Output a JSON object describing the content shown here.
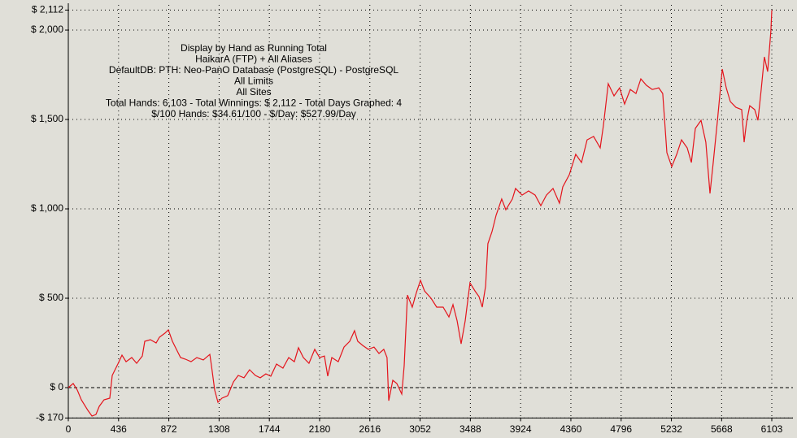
{
  "chart_data": {
    "type": "line",
    "annotations": [
      "Display by Hand as Running Total",
      "HaikarA (FTP) + All Aliases",
      "DefaultDB: PTH: Neo-PanO Database (PostgreSQL) - PostgreSQL",
      "All Limits",
      "All Sites",
      "Total Hands: 6,103 - Total Winnings: $ 2,112 - Total Days Graphed: 4",
      "$/100 Hands: $34.61/100 - $/Day: $527.99/Day"
    ],
    "xlim": [
      0,
      6103
    ],
    "xticks": [
      0,
      436,
      872,
      1308,
      1744,
      2180,
      2616,
      3052,
      3488,
      3924,
      4360,
      4796,
      5232,
      5668,
      6103
    ],
    "ylim": [
      -170,
      2112
    ],
    "yticks": [
      {
        "value": -170,
        "label": "-$ 170"
      },
      {
        "value": 0,
        "label": "$ 0"
      },
      {
        "value": 500,
        "label": "$ 500"
      },
      {
        "value": 1000,
        "label": "$ 1,000"
      },
      {
        "value": 1500,
        "label": "$ 1,500"
      },
      {
        "value": 2000,
        "label": "$ 2,000"
      },
      {
        "value": 2112,
        "label": "$ 2,112"
      }
    ],
    "grid": true,
    "color": "#e4141c",
    "x": [
      0,
      42,
      78,
      113,
      169,
      205,
      240,
      268,
      310,
      360,
      381,
      430,
      466,
      501,
      550,
      593,
      642,
      663,
      712,
      762,
      790,
      839,
      868,
      903,
      938,
      974,
      1016,
      1065,
      1115,
      1171,
      1228,
      1242,
      1270,
      1298,
      1333,
      1383,
      1432,
      1474,
      1524,
      1573,
      1623,
      1665,
      1714,
      1757,
      1806,
      1862,
      1912,
      1961,
      1997,
      2039,
      2088,
      2138,
      2180,
      2222,
      2251,
      2286,
      2342,
      2392,
      2441,
      2483,
      2511,
      2554,
      2603,
      2652,
      2695,
      2737,
      2765,
      2780,
      2815,
      2850,
      2893,
      2914,
      2942,
      2984,
      3020,
      3055,
      3090,
      3147,
      3196,
      3252,
      3302,
      3337,
      3373,
      3408,
      3443,
      3485,
      3528,
      3563,
      3591,
      3620,
      3640,
      3676,
      3711,
      3760,
      3796,
      3852,
      3880,
      3937,
      3993,
      4050,
      4099,
      4148,
      4205,
      4261,
      4290,
      4346,
      4402,
      4452,
      4501,
      4557,
      4614,
      4642,
      4684,
      4734,
      4783,
      4826,
      4875,
      4925,
      4967,
      5016,
      5066,
      5122,
      5157,
      5193,
      5235,
      5278,
      5320,
      5369,
      5405,
      5440,
      5489,
      5531,
      5567,
      5595,
      5630,
      5673,
      5708,
      5743,
      5792,
      5842,
      5863,
      5884,
      5912,
      5955,
      5983,
      6011,
      6039,
      6067,
      6095,
      6103
    ],
    "values": [
      0,
      23,
      -14,
      -68,
      -127,
      -159,
      -150,
      -105,
      -68,
      -59,
      68,
      132,
      182,
      145,
      168,
      136,
      177,
      259,
      268,
      250,
      282,
      305,
      323,
      259,
      214,
      168,
      159,
      145,
      168,
      155,
      186,
      123,
      -14,
      -82,
      -59,
      -45,
      32,
      68,
      55,
      100,
      68,
      55,
      77,
      64,
      132,
      109,
      168,
      145,
      223,
      168,
      136,
      214,
      168,
      177,
      64,
      168,
      145,
      227,
      259,
      318,
      259,
      236,
      214,
      227,
      191,
      214,
      168,
      -73,
      41,
      23,
      -36,
      123,
      518,
      450,
      532,
      600,
      541,
      500,
      450,
      450,
      395,
      464,
      373,
      245,
      373,
      586,
      541,
      509,
      450,
      568,
      805,
      873,
      964,
      1055,
      995,
      1055,
      1114,
      1077,
      1100,
      1077,
      1018,
      1077,
      1114,
      1032,
      1123,
      1191,
      1305,
      1259,
      1386,
      1405,
      1341,
      1464,
      1700,
      1632,
      1677,
      1586,
      1668,
      1645,
      1727,
      1691,
      1668,
      1677,
      1645,
      1314,
      1236,
      1305,
      1386,
      1341,
      1259,
      1450,
      1495,
      1373,
      1086,
      1259,
      1486,
      1782,
      1677,
      1600,
      1568,
      1555,
      1373,
      1486,
      1577,
      1555,
      1495,
      1668,
      1850,
      1768,
      1995,
      2112
    ]
  }
}
